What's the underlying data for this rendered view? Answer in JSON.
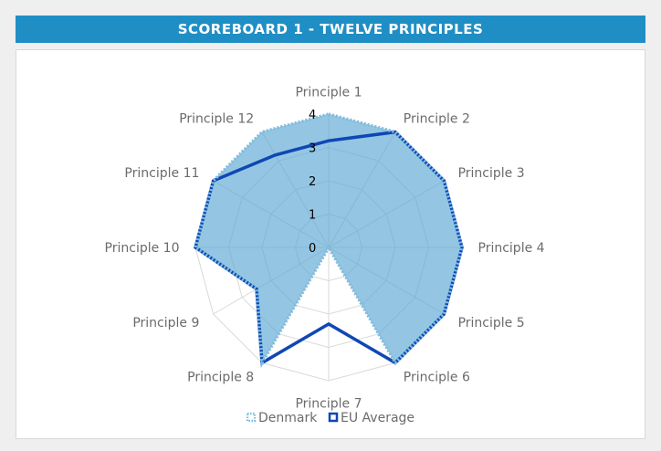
{
  "header": {
    "title": "SCOREBOARD 1 - TWELVE PRINCIPLES"
  },
  "chart_data": {
    "type": "radar",
    "categories": [
      "Principle 1",
      "Principle 2",
      "Principle 3",
      "Principle 4",
      "Principle 5",
      "Principle 6",
      "Principle 7",
      "Principle 8",
      "Principle 9",
      "Principle 10",
      "Principle 11",
      "Principle 12"
    ],
    "rlim": [
      0,
      4
    ],
    "ticks": [
      0,
      1,
      2,
      3,
      4
    ],
    "series": [
      {
        "name": "Denmark",
        "values": [
          4,
          4,
          4,
          4,
          4,
          4,
          0,
          4,
          2.5,
          4,
          4,
          4
        ],
        "color": "#7fbde0",
        "fill": "#5aa8d4",
        "style": "dotted"
      },
      {
        "name": "EU Average",
        "values": [
          3.2,
          4,
          4,
          4,
          4,
          4,
          2.3,
          4,
          2.5,
          4,
          4,
          3.2
        ],
        "color": "#0f47b4",
        "style": "solid"
      }
    ],
    "grid": true,
    "legend": "bottom"
  }
}
